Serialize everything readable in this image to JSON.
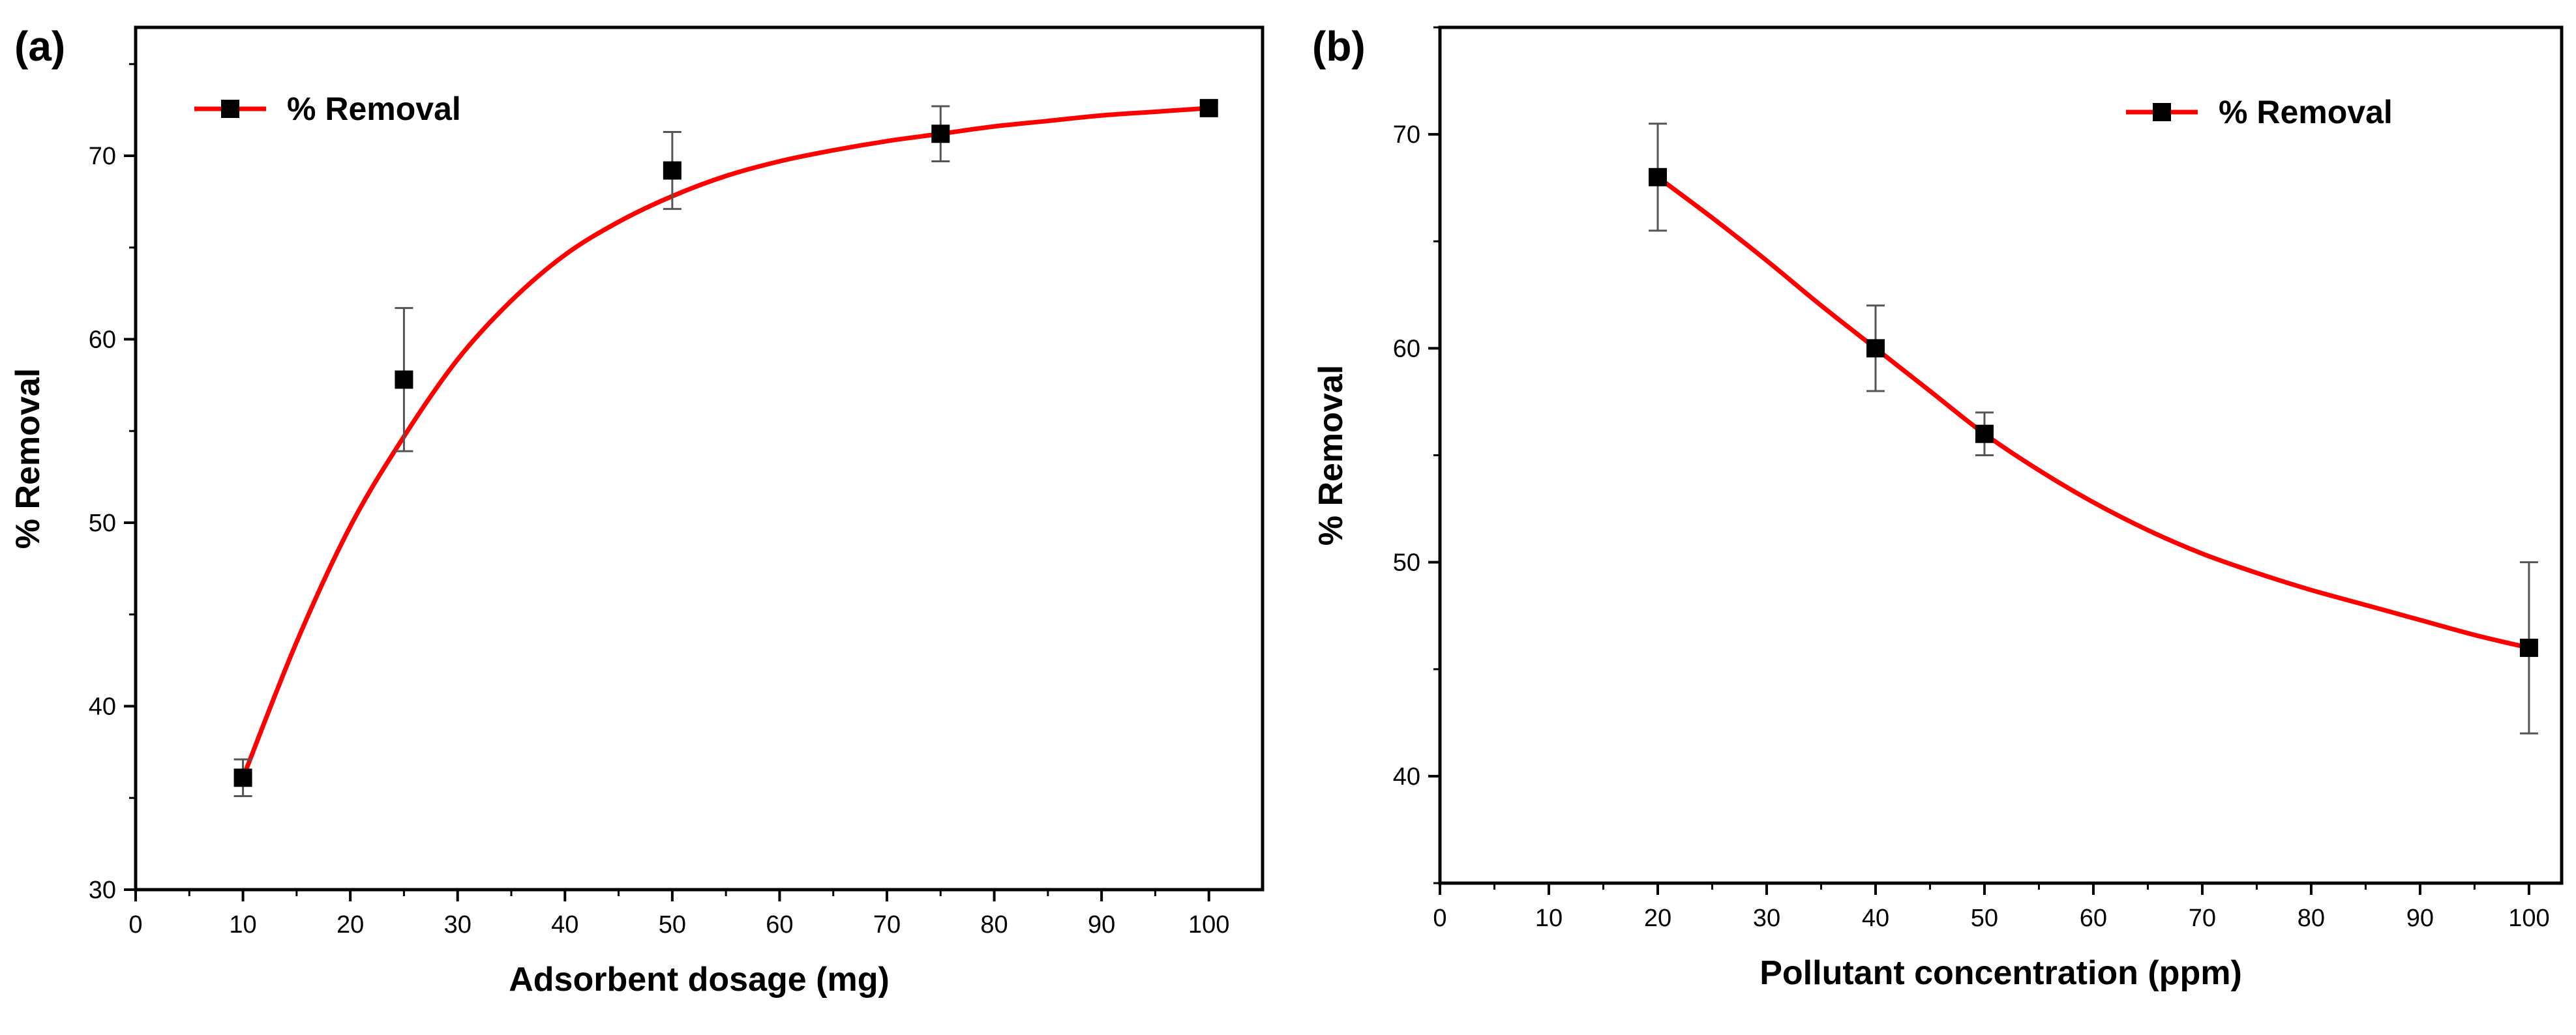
{
  "chart_data": [
    {
      "panel_label": "(a)",
      "type": "line",
      "title": "",
      "xlabel": "Adsorbent dosage (mg)",
      "ylabel": "% Removal",
      "xlim": [
        0,
        105
      ],
      "ylim": [
        30,
        77
      ],
      "xticks": [
        0,
        10,
        20,
        30,
        40,
        50,
        60,
        70,
        80,
        90,
        100
      ],
      "yticks": [
        30,
        40,
        50,
        60,
        70
      ],
      "grid": false,
      "legend": {
        "position": "top-left",
        "entries": [
          "% Removal"
        ]
      },
      "series": [
        {
          "name": "% Removal",
          "color": "#ff0000",
          "marker_color": "#000000",
          "x": [
            10,
            25,
            50,
            75,
            100
          ],
          "y": [
            36.1,
            57.8,
            69.2,
            71.2,
            72.6
          ],
          "error": [
            1.0,
            3.9,
            2.1,
            1.5,
            0.3
          ]
        }
      ],
      "fit_curve": {
        "x": [
          10,
          15,
          20,
          25,
          30,
          35,
          40,
          45,
          50,
          55,
          60,
          65,
          70,
          75,
          80,
          85,
          90,
          95,
          100
        ],
        "y": [
          36.1,
          43.5,
          49.8,
          54.7,
          58.9,
          62.1,
          64.6,
          66.4,
          67.8,
          68.9,
          69.7,
          70.3,
          70.8,
          71.2,
          71.6,
          71.9,
          72.2,
          72.4,
          72.6
        ]
      }
    },
    {
      "panel_label": "(b)",
      "type": "line",
      "title": "",
      "xlabel": "Pollutant concentration (ppm)",
      "ylabel": "% Removal",
      "xlim": [
        0,
        103
      ],
      "ylim": [
        35,
        75
      ],
      "xticks": [
        0,
        10,
        20,
        30,
        40,
        50,
        60,
        70,
        80,
        90,
        100
      ],
      "yticks": [
        40,
        50,
        60,
        70
      ],
      "grid": false,
      "legend": {
        "position": "top-right",
        "entries": [
          "% Removal"
        ]
      },
      "series": [
        {
          "name": "% Removal",
          "color": "#ff0000",
          "marker_color": "#000000",
          "x": [
            20,
            40,
            50,
            100
          ],
          "y": [
            68,
            60,
            56,
            46
          ],
          "error": [
            2.5,
            2.0,
            1.0,
            4.0
          ]
        }
      ],
      "fit_curve": {
        "x": [
          20,
          25,
          30,
          35,
          40,
          45,
          50,
          55,
          60,
          65,
          70,
          75,
          80,
          85,
          90,
          95,
          100
        ],
        "y": [
          68,
          66.1,
          64.1,
          62.0,
          60.0,
          58.0,
          56.0,
          54.3,
          52.8,
          51.5,
          50.4,
          49.5,
          48.7,
          48.0,
          47.3,
          46.6,
          46.0
        ]
      }
    }
  ]
}
